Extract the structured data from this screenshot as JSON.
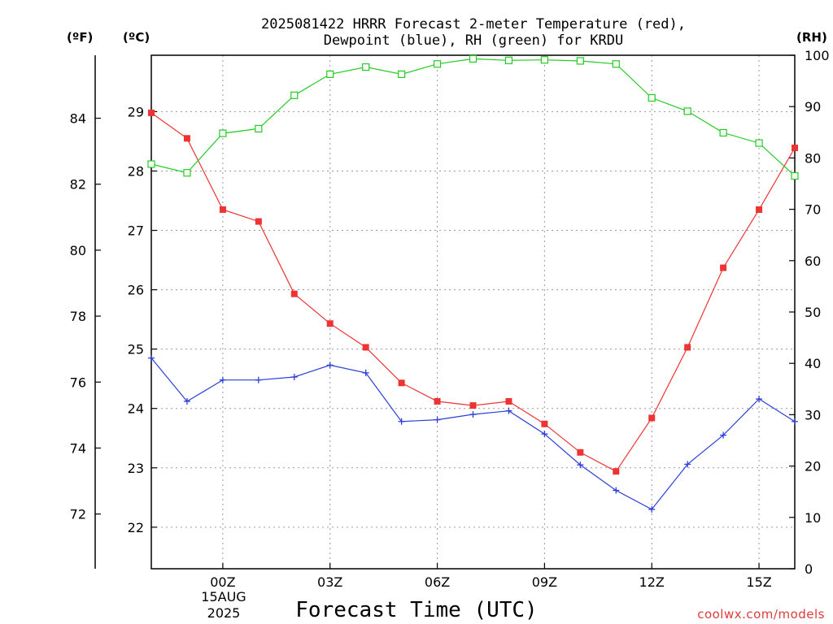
{
  "title": {
    "line1": "2025081422 HRRR Forecast 2-meter Temperature (red),",
    "line2": "Dewpoint (blue), RH (green) for KRDU"
  },
  "units": {
    "f": "(ºF)",
    "c": "(ºC)",
    "rh": "(RH)"
  },
  "x_axis_label": "Forecast Time (UTC)",
  "date_label": {
    "day": "15AUG",
    "year": "2025"
  },
  "credit": "coolwx.com/models",
  "colors": {
    "temperature": "#ee3333",
    "dewpoint": "#2a3ed8",
    "rh": "#22cc22",
    "grid": "#9a9a9a"
  },
  "chart_data": {
    "type": "line",
    "title": "2025081422 HRRR Forecast 2-meter Temperature (red), Dewpoint (blue), RH (green) for KRDU",
    "xlabel": "Forecast Time (UTC)",
    "x_hours": [
      -2,
      -1,
      0,
      1,
      2,
      3,
      4,
      5,
      6,
      7,
      8,
      9,
      10,
      11,
      12,
      13,
      14,
      15,
      16
    ],
    "x_ticks": [
      {
        "hour": 0,
        "label": "00Z"
      },
      {
        "hour": 3,
        "label": "03Z"
      },
      {
        "hour": 6,
        "label": "06Z"
      },
      {
        "hour": 9,
        "label": "09Z"
      },
      {
        "hour": 12,
        "label": "12Z"
      },
      {
        "hour": 15,
        "label": "15Z"
      }
    ],
    "xlim": [
      -2,
      16
    ],
    "celsius_axis": {
      "ylim": [
        21.3,
        29.95
      ],
      "ticks": [
        22,
        23,
        24,
        25,
        26,
        27,
        28,
        29
      ]
    },
    "fahrenheit_axis": {
      "ticks": [
        72,
        74,
        76,
        78,
        80,
        82,
        84
      ]
    },
    "rh_axis": {
      "ylim": [
        0,
        100
      ],
      "ticks": [
        0,
        10,
        20,
        30,
        40,
        50,
        60,
        70,
        80,
        90,
        100
      ]
    },
    "series": [
      {
        "name": "Temperature (red)",
        "axis": "celsius",
        "marker": "filled-square",
        "values": [
          28.98,
          28.55,
          27.35,
          27.15,
          25.93,
          25.43,
          25.03,
          24.43,
          24.12,
          24.05,
          24.12,
          23.74,
          23.26,
          22.94,
          23.84,
          25.03,
          26.37,
          27.35,
          28.39
        ]
      },
      {
        "name": "Dewpoint (blue)",
        "axis": "celsius",
        "marker": "plus",
        "values": [
          24.85,
          24.12,
          24.48,
          24.48,
          24.53,
          24.73,
          24.6,
          23.78,
          23.81,
          23.9,
          23.96,
          23.57,
          23.05,
          22.62,
          22.3,
          23.06,
          23.55,
          24.16,
          23.78
        ]
      },
      {
        "name": "RH (green)",
        "axis": "rh",
        "marker": "open-square",
        "values": [
          78.8,
          77.1,
          84.8,
          85.7,
          92.2,
          96.3,
          97.7,
          96.3,
          98.3,
          99.3,
          99.0,
          99.1,
          98.9,
          98.3,
          91.7,
          89.1,
          84.9,
          82.9,
          76.5
        ]
      }
    ]
  }
}
